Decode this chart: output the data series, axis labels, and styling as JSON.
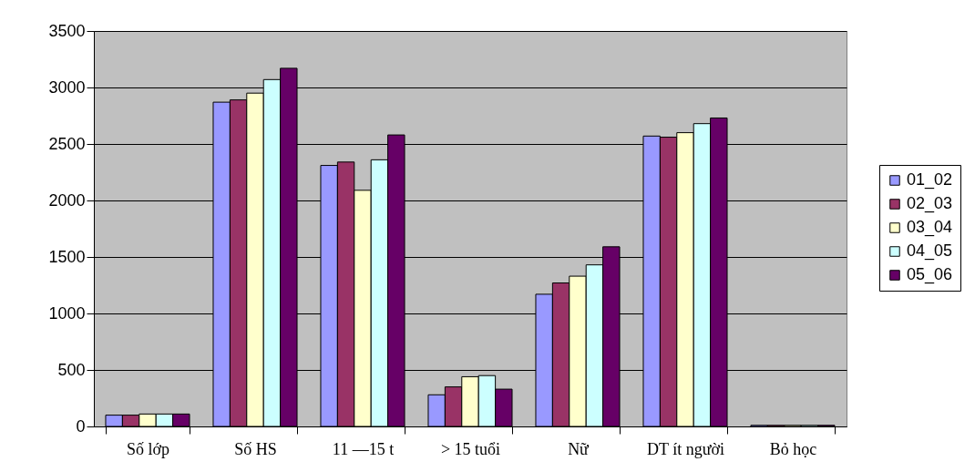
{
  "chart_data": {
    "type": "bar",
    "categories": [
      "Số lớp",
      "Số HS",
      "11 —15 t",
      "> 15 tuổi",
      "Nữ",
      "DT ít người",
      "Bỏ học"
    ],
    "series": [
      {
        "name": "01_02",
        "color": "#9999ff",
        "values": [
          100,
          2870,
          2310,
          280,
          1170,
          2570,
          10
        ]
      },
      {
        "name": "02_03",
        "color": "#993366",
        "values": [
          100,
          2890,
          2340,
          350,
          1270,
          2560,
          10
        ]
      },
      {
        "name": "03_04",
        "color": "#ffffcc",
        "values": [
          110,
          2950,
          2090,
          440,
          1330,
          2600,
          10
        ]
      },
      {
        "name": "04_05",
        "color": "#ccffff",
        "values": [
          110,
          3070,
          2360,
          450,
          1430,
          2680,
          10
        ]
      },
      {
        "name": "05_06",
        "color": "#660066",
        "values": [
          110,
          3170,
          2580,
          330,
          1590,
          2730,
          10
        ]
      }
    ],
    "ylim": [
      0,
      3500
    ],
    "yticks": [
      0,
      500,
      1000,
      1500,
      2000,
      2500,
      3000,
      3500
    ],
    "grid": "y",
    "legend": "right"
  }
}
